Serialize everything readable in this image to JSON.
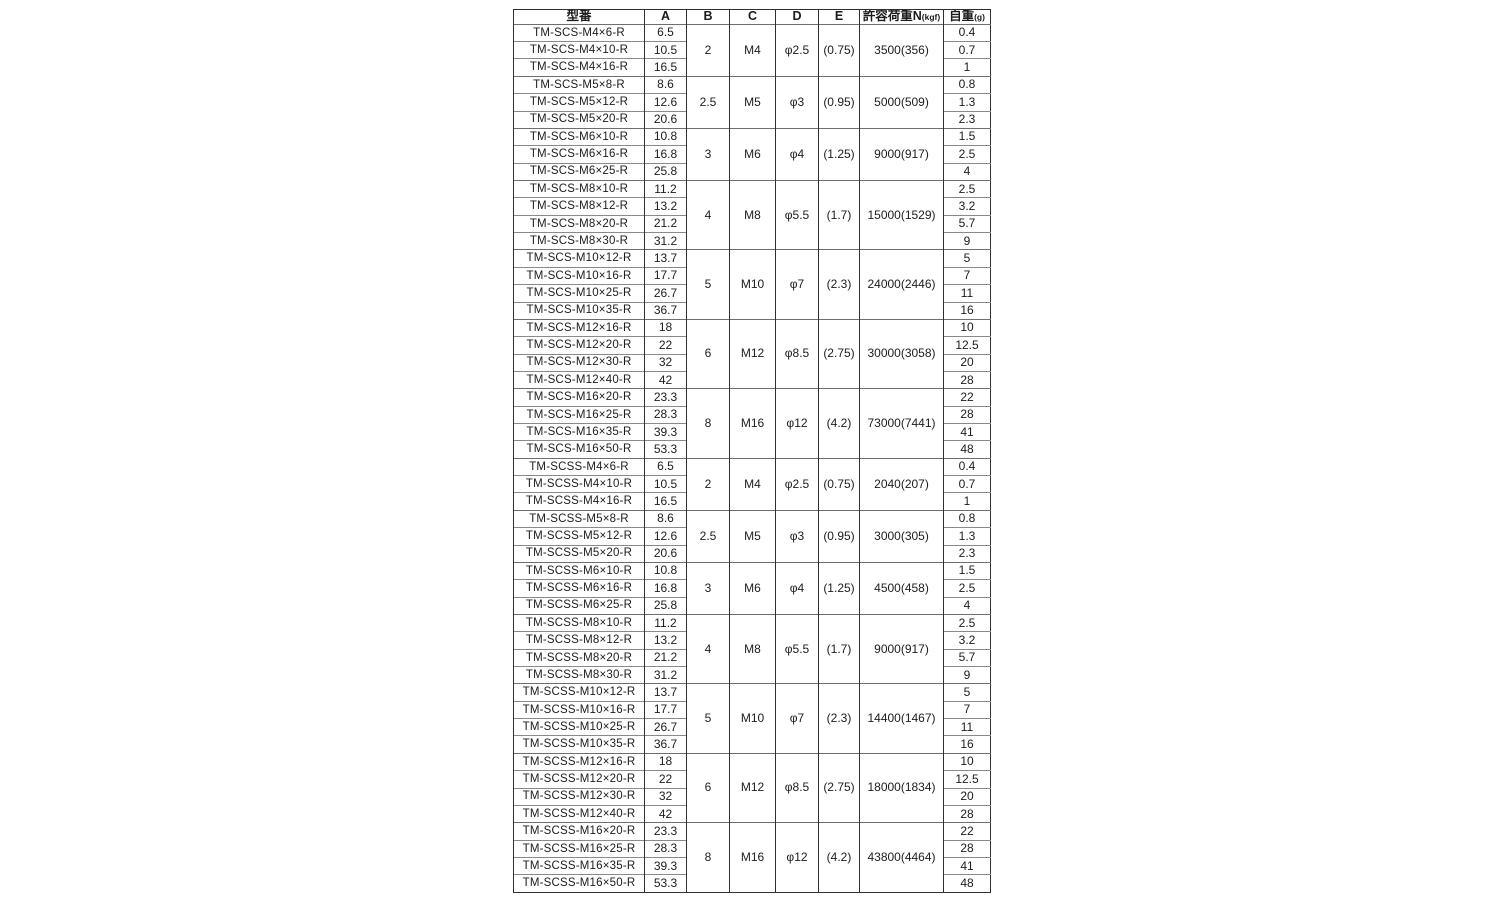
{
  "table": {
    "border_color": "#303030",
    "row_line_color": "#8a8a8a",
    "text_color": "#1c1c1c",
    "headers": {
      "model": "型番",
      "a": "A",
      "b": "B",
      "c": "C",
      "d": "D",
      "e": "E",
      "load": "許容荷重N",
      "load_unit": "(kgf)",
      "weight": "自重",
      "weight_unit": "(g)"
    },
    "groups": [
      {
        "b": "2",
        "c": "M4",
        "d": "φ2.5",
        "e": "(0.75)",
        "load": "3500(356)",
        "rows": [
          {
            "model": "TM-SCS-M4×6-R",
            "a": "6.5",
            "weight": "0.4"
          },
          {
            "model": "TM-SCS-M4×10-R",
            "a": "10.5",
            "weight": "0.7"
          },
          {
            "model": "TM-SCS-M4×16-R",
            "a": "16.5",
            "weight": "1"
          }
        ]
      },
      {
        "b": "2.5",
        "c": "M5",
        "d": "φ3",
        "e": "(0.95)",
        "load": "5000(509)",
        "rows": [
          {
            "model": "TM-SCS-M5×8-R",
            "a": "8.6",
            "weight": "0.8"
          },
          {
            "model": "TM-SCS-M5×12-R",
            "a": "12.6",
            "weight": "1.3"
          },
          {
            "model": "TM-SCS-M5×20-R",
            "a": "20.6",
            "weight": "2.3"
          }
        ]
      },
      {
        "b": "3",
        "c": "M6",
        "d": "φ4",
        "e": "(1.25)",
        "load": "9000(917)",
        "rows": [
          {
            "model": "TM-SCS-M6×10-R",
            "a": "10.8",
            "weight": "1.5"
          },
          {
            "model": "TM-SCS-M6×16-R",
            "a": "16.8",
            "weight": "2.5"
          },
          {
            "model": "TM-SCS-M6×25-R",
            "a": "25.8",
            "weight": "4"
          }
        ]
      },
      {
        "b": "4",
        "c": "M8",
        "d": "φ5.5",
        "e": "(1.7)",
        "load": "15000(1529)",
        "rows": [
          {
            "model": "TM-SCS-M8×10-R",
            "a": "11.2",
            "weight": "2.5"
          },
          {
            "model": "TM-SCS-M8×12-R",
            "a": "13.2",
            "weight": "3.2"
          },
          {
            "model": "TM-SCS-M8×20-R",
            "a": "21.2",
            "weight": "5.7"
          },
          {
            "model": "TM-SCS-M8×30-R",
            "a": "31.2",
            "weight": "9"
          }
        ]
      },
      {
        "b": "5",
        "c": "M10",
        "d": "φ7",
        "e": "(2.3)",
        "load": "24000(2446)",
        "rows": [
          {
            "model": "TM-SCS-M10×12-R",
            "a": "13.7",
            "weight": "5"
          },
          {
            "model": "TM-SCS-M10×16-R",
            "a": "17.7",
            "weight": "7"
          },
          {
            "model": "TM-SCS-M10×25-R",
            "a": "26.7",
            "weight": "11"
          },
          {
            "model": "TM-SCS-M10×35-R",
            "a": "36.7",
            "weight": "16"
          }
        ]
      },
      {
        "b": "6",
        "c": "M12",
        "d": "φ8.5",
        "e": "(2.75)",
        "load": "30000(3058)",
        "rows": [
          {
            "model": "TM-SCS-M12×16-R",
            "a": "18",
            "weight": "10"
          },
          {
            "model": "TM-SCS-M12×20-R",
            "a": "22",
            "weight": "12.5"
          },
          {
            "model": "TM-SCS-M12×30-R",
            "a": "32",
            "weight": "20"
          },
          {
            "model": "TM-SCS-M12×40-R",
            "a": "42",
            "weight": "28"
          }
        ]
      },
      {
        "b": "8",
        "c": "M16",
        "d": "φ12",
        "e": "(4.2)",
        "load": "73000(7441)",
        "rows": [
          {
            "model": "TM-SCS-M16×20-R",
            "a": "23.3",
            "weight": "22"
          },
          {
            "model": "TM-SCS-M16×25-R",
            "a": "28.3",
            "weight": "28"
          },
          {
            "model": "TM-SCS-M16×35-R",
            "a": "39.3",
            "weight": "41"
          },
          {
            "model": "TM-SCS-M16×50-R",
            "a": "53.3",
            "weight": "48"
          }
        ]
      },
      {
        "b": "2",
        "c": "M4",
        "d": "φ2.5",
        "e": "(0.75)",
        "load": "2040(207)",
        "rows": [
          {
            "model": "TM-SCSS-M4×6-R",
            "a": "6.5",
            "weight": "0.4"
          },
          {
            "model": "TM-SCSS-M4×10-R",
            "a": "10.5",
            "weight": "0.7"
          },
          {
            "model": "TM-SCSS-M4×16-R",
            "a": "16.5",
            "weight": "1"
          }
        ]
      },
      {
        "b": "2.5",
        "c": "M5",
        "d": "φ3",
        "e": "(0.95)",
        "load": "3000(305)",
        "rows": [
          {
            "model": "TM-SCSS-M5×8-R",
            "a": "8.6",
            "weight": "0.8"
          },
          {
            "model": "TM-SCSS-M5×12-R",
            "a": "12.6",
            "weight": "1.3"
          },
          {
            "model": "TM-SCSS-M5×20-R",
            "a": "20.6",
            "weight": "2.3"
          }
        ]
      },
      {
        "b": "3",
        "c": "M6",
        "d": "φ4",
        "e": "(1.25)",
        "load": "4500(458)",
        "rows": [
          {
            "model": "TM-SCSS-M6×10-R",
            "a": "10.8",
            "weight": "1.5"
          },
          {
            "model": "TM-SCSS-M6×16-R",
            "a": "16.8",
            "weight": "2.5"
          },
          {
            "model": "TM-SCSS-M6×25-R",
            "a": "25.8",
            "weight": "4"
          }
        ]
      },
      {
        "b": "4",
        "c": "M8",
        "d": "φ5.5",
        "e": "(1.7)",
        "load": "9000(917)",
        "rows": [
          {
            "model": "TM-SCSS-M8×10-R",
            "a": "11.2",
            "weight": "2.5"
          },
          {
            "model": "TM-SCSS-M8×12-R",
            "a": "13.2",
            "weight": "3.2"
          },
          {
            "model": "TM-SCSS-M8×20-R",
            "a": "21.2",
            "weight": "5.7"
          },
          {
            "model": "TM-SCSS-M8×30-R",
            "a": "31.2",
            "weight": "9"
          }
        ]
      },
      {
        "b": "5",
        "c": "M10",
        "d": "φ7",
        "e": "(2.3)",
        "load": "14400(1467)",
        "rows": [
          {
            "model": "TM-SCSS-M10×12-R",
            "a": "13.7",
            "weight": "5"
          },
          {
            "model": "TM-SCSS-M10×16-R",
            "a": "17.7",
            "weight": "7"
          },
          {
            "model": "TM-SCSS-M10×25-R",
            "a": "26.7",
            "weight": "11"
          },
          {
            "model": "TM-SCSS-M10×35-R",
            "a": "36.7",
            "weight": "16"
          }
        ]
      },
      {
        "b": "6",
        "c": "M12",
        "d": "φ8.5",
        "e": "(2.75)",
        "load": "18000(1834)",
        "rows": [
          {
            "model": "TM-SCSS-M12×16-R",
            "a": "18",
            "weight": "10"
          },
          {
            "model": "TM-SCSS-M12×20-R",
            "a": "22",
            "weight": "12.5"
          },
          {
            "model": "TM-SCSS-M12×30-R",
            "a": "32",
            "weight": "20"
          },
          {
            "model": "TM-SCSS-M12×40-R",
            "a": "42",
            "weight": "28"
          }
        ]
      },
      {
        "b": "8",
        "c": "M16",
        "d": "φ12",
        "e": "(4.2)",
        "load": "43800(4464)",
        "rows": [
          {
            "model": "TM-SCSS-M16×20-R",
            "a": "23.3",
            "weight": "22"
          },
          {
            "model": "TM-SCSS-M16×25-R",
            "a": "28.3",
            "weight": "28"
          },
          {
            "model": "TM-SCSS-M16×35-R",
            "a": "39.3",
            "weight": "41"
          },
          {
            "model": "TM-SCSS-M16×50-R",
            "a": "53.3",
            "weight": "48"
          }
        ]
      }
    ]
  }
}
